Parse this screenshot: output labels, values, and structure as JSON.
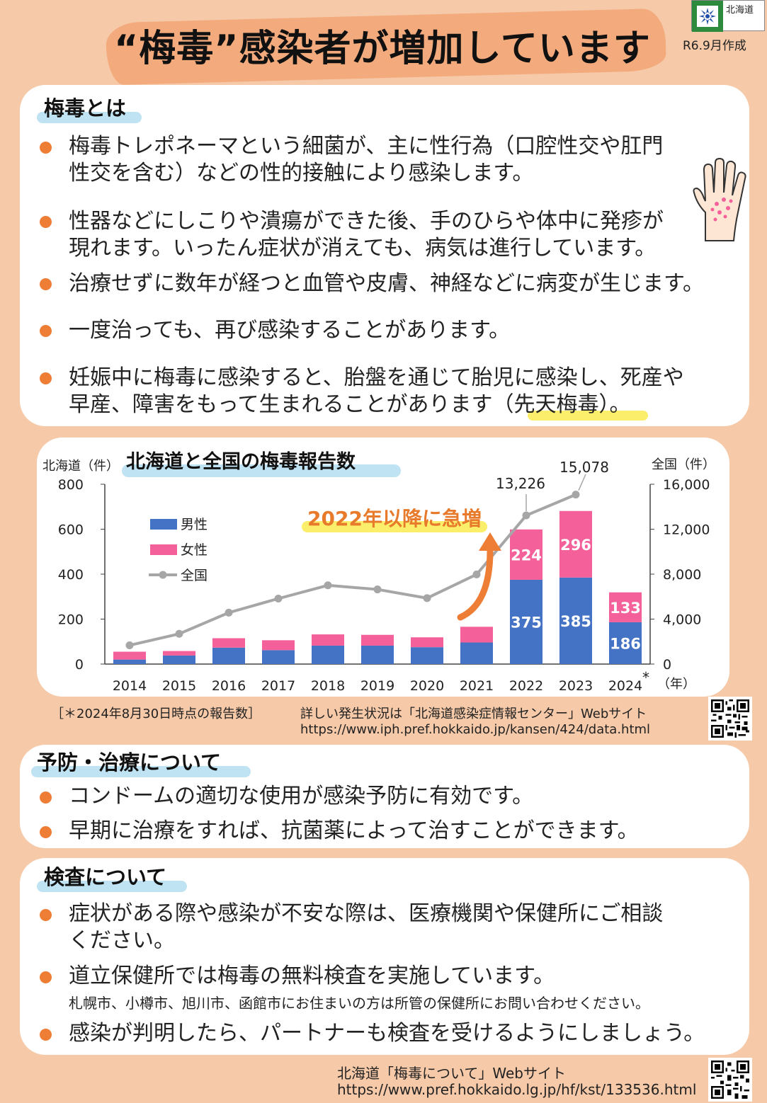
{
  "header": {
    "title": "“梅毒”感染者が増加しています",
    "logo_name": "北海道",
    "date": "R6.9月作成"
  },
  "about": {
    "title": "梅毒とは",
    "bullets": [
      [
        "梅毒トレポネーマという細菌が、主に性行為（口腔性交や肛門",
        "性交を含む）などの性的接触により感染します。"
      ],
      [
        "性器などにしこりや潰瘍ができた後、手のひらや体中に発疹が",
        "現れます。いったん症状が消えても、病気は進行しています。"
      ],
      [
        "治療せずに数年が経つと血管や皮膚、神経などに病変が生じます。"
      ],
      [
        "一度治っても、再び感染することがあります。"
      ],
      [
        "妊娠中に梅毒に感染すると、胎盤を通じて胎児に感染し、死産や",
        "早産、障害をもって生まれることがあります（先天梅毒）。"
      ]
    ]
  },
  "chart_data": {
    "type": "bar",
    "title": "北海道と全国の梅毒報告数",
    "left_axis_label": "北海道（件）",
    "right_axis_label": "全国（件）",
    "x_unit": "（年）",
    "x_note": "*",
    "categories": [
      "2014",
      "2015",
      "2016",
      "2017",
      "2018",
      "2019",
      "2020",
      "2021",
      "2022",
      "2023",
      "2024"
    ],
    "series": [
      {
        "name": "男性",
        "values": [
          20,
          38,
          73,
          62,
          82,
          82,
          75,
          96,
          375,
          385,
          186
        ],
        "color": "#4472c4",
        "axis": "left"
      },
      {
        "name": "女性",
        "values": [
          35,
          20,
          42,
          44,
          50,
          48,
          44,
          70,
          224,
          296,
          133
        ],
        "color": "#f4619a",
        "axis": "left"
      },
      {
        "name": "全国",
        "values": [
          1671,
          2690,
          4575,
          5826,
          7007,
          6642,
          5867,
          7978,
          13226,
          15078,
          null
        ],
        "color": "#a6a6a6",
        "axis": "right"
      }
    ],
    "labeled_bar_years": [
      "2022",
      "2023",
      "2024"
    ],
    "national_labels": [
      "13,226",
      "15,078"
    ],
    "left_ticks": [
      "800",
      "600",
      "400",
      "200",
      "0"
    ],
    "right_ticks": [
      "16,000",
      "12,000",
      "8,000",
      "4,000",
      "0"
    ],
    "ylim": [
      0,
      800
    ],
    "y2lim": [
      0,
      16000
    ],
    "annotation": "2022年以降に急増",
    "legend_placement": "top-left"
  },
  "chart_note": {
    "left": "［＊2024年8月30日時点の報告数］",
    "right_line1": "詳しい発生状況は「北海道感染症情報センター」Webサイト",
    "right_line2": "https://www.iph.pref.hokkaido.jp/kansen/424/data.html"
  },
  "prevention": {
    "title": "予防・治療について",
    "bullets": [
      "コンドームの適切な使用が感染予防に有効です。",
      "早期に治療をすれば、抗菌薬によって治すことができます。"
    ]
  },
  "testing": {
    "title": "検査について",
    "bullet1": [
      "症状がある際や感染が不安な際は、医療機関や保健所にご相談",
      "ください。"
    ],
    "bullet2": "道立保健所では梅毒の無料検査を実施しています。",
    "bullet2_note": "札幌市、小樽市、旭川市、函館市にお住まいの方は所管の保健所にお問い合わせください。",
    "bullet3": "感染が判明したら、パートナーも検査を受けるようにしましょう。"
  },
  "footer": {
    "line1": "北海道「梅毒について」Webサイト",
    "line2": "https://www.pref.hokkaido.lg.jp/hf/kst/133536.html"
  }
}
